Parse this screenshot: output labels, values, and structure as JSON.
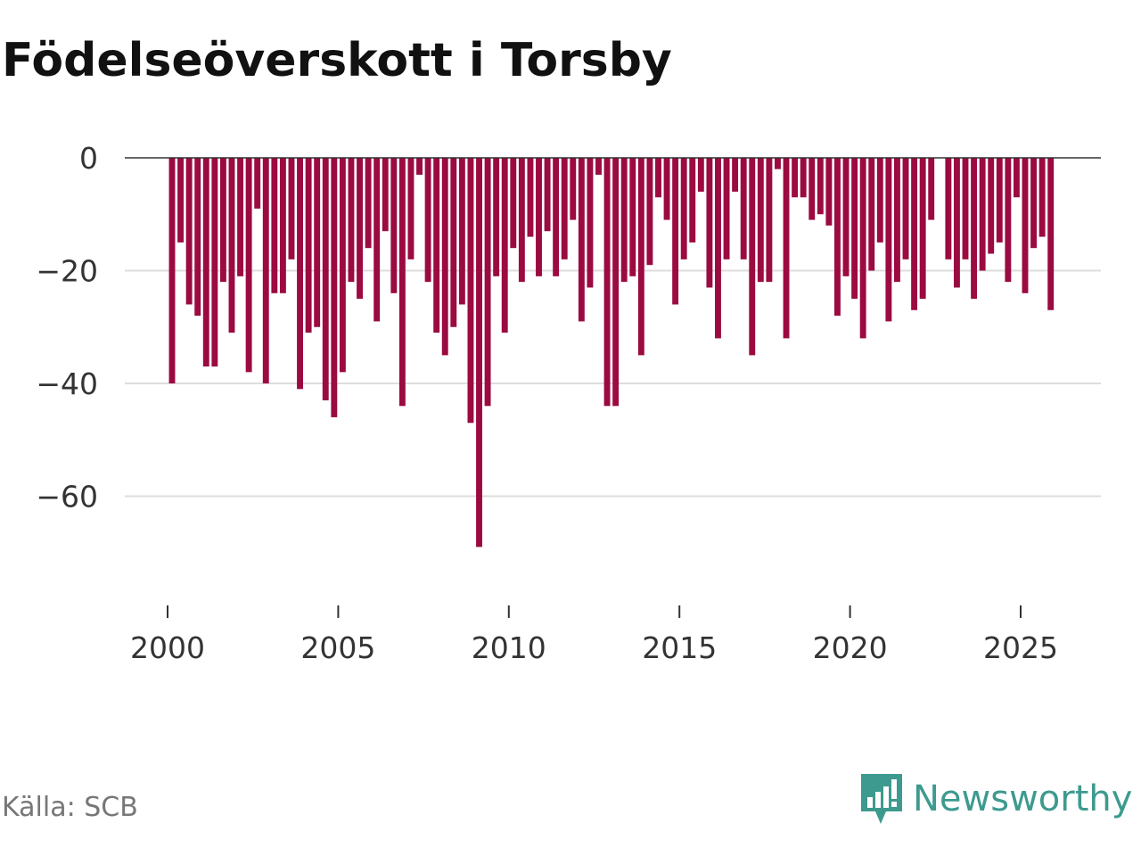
{
  "title": "Födelseöverskott i Torsby",
  "source": "Källa: SCB",
  "brand": {
    "name": "Newsworthy",
    "icon": "newsworthy-logo-icon",
    "color": "#3d9a8e"
  },
  "colors": {
    "bar": "#9b0a41",
    "grid": "#dddddd",
    "zero_line": "#333333",
    "text": "#333333"
  },
  "chart_data": {
    "type": "bar",
    "title": "Födelseöverskott i Torsby",
    "xlabel": "",
    "ylabel": "",
    "ylim": [
      -80,
      0
    ],
    "xlim": [
      1997.6,
      2027.6
    ],
    "yticks": [
      {
        "value": 0,
        "label": "0"
      },
      {
        "value": -20,
        "label": "−20"
      },
      {
        "value": -40,
        "label": "−40"
      },
      {
        "value": -60,
        "label": "−60"
      }
    ],
    "xticks": [
      {
        "value": 2000,
        "label": "2000"
      },
      {
        "value": 2005,
        "label": "2005"
      },
      {
        "value": 2010,
        "label": "2010"
      },
      {
        "value": 2015,
        "label": "2015"
      },
      {
        "value": 2020,
        "label": "2020"
      },
      {
        "value": 2025,
        "label": "2025"
      }
    ],
    "start_year": 2000,
    "months_per_year": 4,
    "note": "Quarterly values, starting 2000 Q1",
    "values": [
      -40,
      -15,
      -26,
      -28,
      -37,
      -37,
      -22,
      -31,
      -21,
      -38,
      -9,
      -40,
      -24,
      -24,
      -18,
      -41,
      -31,
      -30,
      -43,
      -46,
      -38,
      -22,
      -25,
      -16,
      -29,
      -13,
      -24,
      -44,
      -18,
      -3,
      -22,
      -31,
      -35,
      -30,
      -26,
      -47,
      -69,
      -44,
      -21,
      -31,
      -16,
      -22,
      -14,
      -21,
      -13,
      -21,
      -18,
      -11,
      -29,
      -23,
      -3,
      -44,
      -44,
      -22,
      -21,
      -35,
      -19,
      -7,
      -11,
      -26,
      -18,
      -15,
      -6,
      -23,
      -32,
      -18,
      -6,
      -18,
      -35,
      -22,
      -22,
      -2,
      -32,
      -7,
      -7,
      -11,
      -10,
      -12,
      -28,
      -21,
      -25,
      -32,
      -20,
      -15,
      -29,
      -22,
      -18,
      -27,
      -25,
      -11,
      null,
      -18,
      -23,
      -18,
      -25,
      -20,
      -17,
      -15,
      -22,
      -7,
      -24,
      -16,
      -14,
      -27
    ]
  }
}
